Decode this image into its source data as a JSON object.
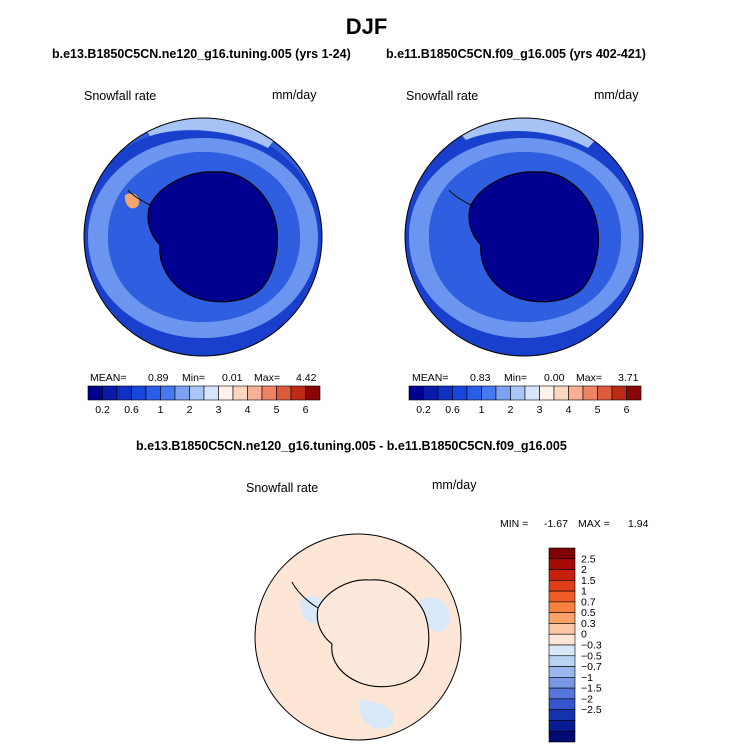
{
  "page": {
    "title": "DJF"
  },
  "panels": {
    "left": {
      "case": "b.e13.B1850C5CN.ne120_g16.tuning.005 (yrs 1-24)",
      "variable": "Snowfall rate",
      "units": "mm/day",
      "stats": {
        "mean_label": "MEAN=",
        "mean": "0.89",
        "min_label": "Min=",
        "min": "0.01",
        "max_label": "Max=",
        "max": "4.42"
      }
    },
    "right": {
      "case": "b.e11.B1850C5CN.f09_g16.005 (yrs 402-421)",
      "variable": "Snowfall rate",
      "units": "mm/day",
      "stats": {
        "mean_label": "MEAN=",
        "mean": "0.83",
        "min_label": "Min=",
        "min": "0.00",
        "max_label": "Max=",
        "max": "3.71"
      }
    },
    "diff": {
      "case": "b.e13.B1850C5CN.ne120_g16.tuning.005 - b.e11.B1850C5CN.f09_g16.005",
      "variable": "Snowfall rate",
      "units": "mm/day",
      "minmax": {
        "min_label": "MIN =",
        "min": "-1.67",
        "max_label": "MAX =",
        "max": "1.94"
      }
    }
  },
  "chart_data": [
    {
      "type": "heatmap",
      "projection": "south-polar-stereographic",
      "title": "b.e13.B1850C5CN.ne120_g16.tuning.005 (yrs 1-24)",
      "variable": "Snowfall rate",
      "units": "mm/day",
      "mean": 0.89,
      "min": 0.01,
      "max": 4.42,
      "colorbar_ticks": [
        "0.2",
        "0.6",
        "1",
        "2",
        "3",
        "4",
        "5",
        "6"
      ],
      "colorbar_levels": [
        0.2,
        0.4,
        0.6,
        0.8,
        1,
        1.5,
        2,
        2.5,
        3,
        3.5,
        4,
        4.5,
        5,
        5.5,
        6
      ],
      "colorbar_colors": [
        "#000090",
        "#0a1aa8",
        "#1030c4",
        "#1846dc",
        "#2a5ee8",
        "#4878f0",
        "#7da2f2",
        "#aac6f8",
        "#d6e4fc",
        "#fff2ea",
        "#fdd6c2",
        "#f7b096",
        "#ee8464",
        "#de5a3c",
        "#bd2a16",
        "#8a0606"
      ]
    },
    {
      "type": "heatmap",
      "projection": "south-polar-stereographic",
      "title": "b.e11.B1850C5CN.f09_g16.005 (yrs 402-421)",
      "variable": "Snowfall rate",
      "units": "mm/day",
      "mean": 0.83,
      "min": 0.0,
      "max": 3.71,
      "colorbar_ticks": [
        "0.2",
        "0.6",
        "1",
        "2",
        "3",
        "4",
        "5",
        "6"
      ],
      "colorbar_levels": [
        0.2,
        0.4,
        0.6,
        0.8,
        1,
        1.5,
        2,
        2.5,
        3,
        3.5,
        4,
        4.5,
        5,
        5.5,
        6
      ],
      "colorbar_colors": [
        "#000090",
        "#0a1aa8",
        "#1030c4",
        "#1846dc",
        "#2a5ee8",
        "#4878f0",
        "#7da2f2",
        "#aac6f8",
        "#d6e4fc",
        "#fff2ea",
        "#fdd6c2",
        "#f7b096",
        "#ee8464",
        "#de5a3c",
        "#bd2a16",
        "#8a0606"
      ]
    },
    {
      "type": "heatmap",
      "projection": "south-polar-stereographic",
      "title": "b.e13.B1850C5CN.ne120_g16.tuning.005 - b.e11.B1850C5CN.f09_g16.005",
      "variable": "Snowfall rate",
      "units": "mm/day",
      "min": -1.67,
      "max": 1.94,
      "colorbar_ticks": [
        "2.5",
        "2",
        "1.5",
        "1",
        "0.7",
        "0.5",
        "0.3",
        "0",
        "−0.3",
        "−0.5",
        "−0.7",
        "−1",
        "−1.5",
        "−2",
        "−2.5"
      ],
      "colorbar_colors": [
        "#7f0000",
        "#a40b04",
        "#c5200c",
        "#de3e18",
        "#f05c28",
        "#f7823e",
        "#f9a268",
        "#fbc6a4",
        "#fde6d6",
        "#d8e8f8",
        "#b8d2f4",
        "#98b8ee",
        "#7898e6",
        "#5676dc",
        "#3456cc",
        "#1432b0",
        "#061c90",
        "#000a70"
      ]
    }
  ]
}
